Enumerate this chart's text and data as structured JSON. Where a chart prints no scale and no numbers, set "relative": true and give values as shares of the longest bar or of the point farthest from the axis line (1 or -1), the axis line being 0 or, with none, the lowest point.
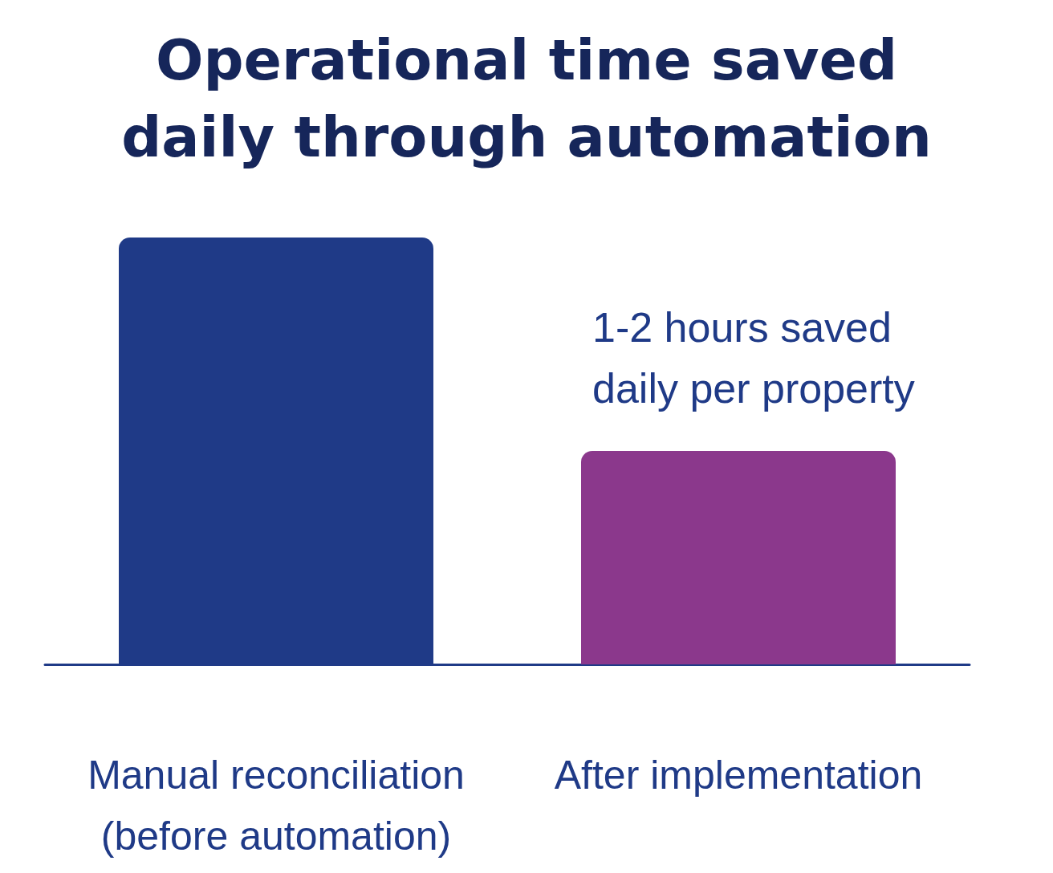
{
  "chart_data": {
    "type": "bar",
    "title": "Operational time saved\ndaily through automation",
    "categories": [
      "Manual reconciliation\n(before automation)",
      "After implementation"
    ],
    "values": [
      1,
      0.5
    ],
    "colors": [
      "#1f3a87",
      "#8b388c"
    ],
    "relative": true,
    "annotations": [
      "1-2 hours saved\ndaily per property"
    ]
  }
}
